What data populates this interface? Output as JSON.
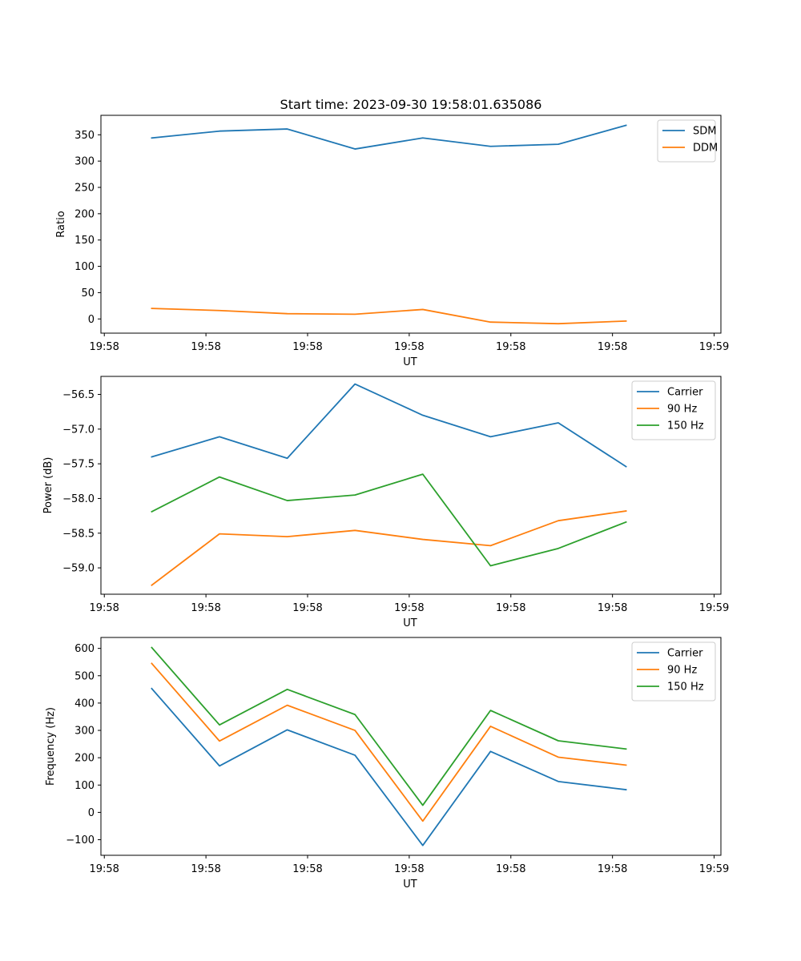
{
  "figure": {
    "title": "Start time: 2023-09-30 19:58:01.635086"
  },
  "chart_data": [
    {
      "type": "line",
      "title": "Start time: 2023-09-30 19:58:01.635086",
      "xlabel": "UT",
      "ylabel": "Ratio",
      "x_ticks": [
        "19:58",
        "19:58",
        "19:58",
        "19:58",
        "19:58",
        "19:58",
        "19:59"
      ],
      "x_range": [
        -0.75,
        8.4
      ],
      "x": [
        0,
        1,
        2,
        3,
        4,
        5,
        6,
        7
      ],
      "ylim": [
        -27,
        387
      ],
      "y_ticks": [
        0,
        50,
        100,
        150,
        200,
        250,
        300,
        350
      ],
      "y_tick_labels": [
        "0",
        "50",
        "100",
        "150",
        "200",
        "250",
        "300",
        "350"
      ],
      "legend_position": "top-right",
      "series": [
        {
          "name": "SDM",
          "color": "#1f77b4",
          "values": [
            344,
            357,
            361,
            323,
            344,
            328,
            332,
            368
          ]
        },
        {
          "name": "DDM",
          "color": "#ff7f0e",
          "values": [
            20,
            16,
            10,
            9,
            18,
            -6,
            -9,
            -4
          ]
        }
      ]
    },
    {
      "type": "line",
      "xlabel": "UT",
      "ylabel": "Power (dB)",
      "x_ticks": [
        "19:58",
        "19:58",
        "19:58",
        "19:58",
        "19:58",
        "19:58",
        "19:59"
      ],
      "x_range": [
        -0.75,
        8.4
      ],
      "x": [
        0,
        1,
        2,
        3,
        4,
        5,
        6,
        7
      ],
      "ylim": [
        -59.38,
        -56.24
      ],
      "y_ticks": [
        -59.0,
        -58.5,
        -58.0,
        -57.5,
        -57.0,
        -56.5
      ],
      "y_tick_labels": [
        "−59.0",
        "−58.5",
        "−58.0",
        "−57.5",
        "−57.0",
        "−56.5"
      ],
      "legend_position": "top-right",
      "series": [
        {
          "name": "Carrier",
          "color": "#1f77b4",
          "values": [
            -57.4,
            -57.11,
            -57.42,
            -56.35,
            -56.8,
            -57.11,
            -56.91,
            -57.54
          ]
        },
        {
          "name": "90 Hz",
          "color": "#ff7f0e",
          "values": [
            -59.25,
            -58.51,
            -58.55,
            -58.46,
            -58.59,
            -58.68,
            -58.32,
            -58.18
          ]
        },
        {
          "name": "150 Hz",
          "color": "#2ca02c",
          "values": [
            -58.19,
            -57.69,
            -58.03,
            -57.95,
            -57.65,
            -58.97,
            -58.72,
            -58.34
          ]
        }
      ]
    },
    {
      "type": "line",
      "xlabel": "UT",
      "ylabel": "Frequency (Hz)",
      "x_ticks": [
        "19:58",
        "19:58",
        "19:58",
        "19:58",
        "19:58",
        "19:58",
        "19:59"
      ],
      "x_range": [
        -0.75,
        8.4
      ],
      "x": [
        0,
        1,
        2,
        3,
        4,
        5,
        6,
        7
      ],
      "ylim": [
        -157,
        640
      ],
      "y_ticks": [
        -100,
        0,
        100,
        200,
        300,
        400,
        500,
        600
      ],
      "y_tick_labels": [
        "−100",
        "0",
        "100",
        "200",
        "300",
        "400",
        "500",
        "600"
      ],
      "legend_position": "top-right",
      "series": [
        {
          "name": "Carrier",
          "color": "#1f77b4",
          "values": [
            453,
            170,
            302,
            209,
            -121,
            223,
            113,
            83
          ]
        },
        {
          "name": "90 Hz",
          "color": "#ff7f0e",
          "values": [
            545,
            261,
            392,
            300,
            -32,
            315,
            202,
            173
          ]
        },
        {
          "name": "150 Hz",
          "color": "#2ca02c",
          "values": [
            603,
            320,
            450,
            358,
            26,
            373,
            262,
            232
          ]
        }
      ]
    }
  ]
}
